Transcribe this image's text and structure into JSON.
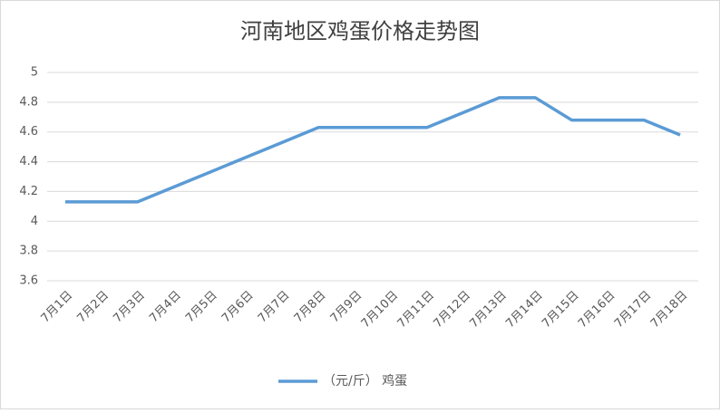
{
  "chart_data": {
    "type": "line",
    "title": "河南地区鸡蛋价格走势图",
    "categories": [
      "7月1日",
      "7月2日",
      "7月3日",
      "7月4日",
      "7月5日",
      "7月6日",
      "7月7日",
      "7月8日",
      "7月9日",
      "7月10日",
      "7月11日",
      "7月12日",
      "7月13日",
      "7月14日",
      "7月15日",
      "7月16日",
      "7月17日",
      "7月18日"
    ],
    "series": [
      {
        "name": "（元/斤） 鸡蛋",
        "color": "#5b9bd5",
        "values": [
          4.13,
          4.13,
          4.13,
          4.23,
          4.33,
          4.43,
          4.53,
          4.63,
          4.63,
          4.63,
          4.63,
          4.73,
          4.83,
          4.83,
          4.68,
          4.68,
          4.68,
          4.58
        ]
      }
    ],
    "ylim": [
      3.6,
      5
    ],
    "yticks": [
      3.6,
      3.8,
      4,
      4.2,
      4.4,
      4.6,
      4.8,
      5
    ],
    "grid": true,
    "legend": "bottom"
  }
}
